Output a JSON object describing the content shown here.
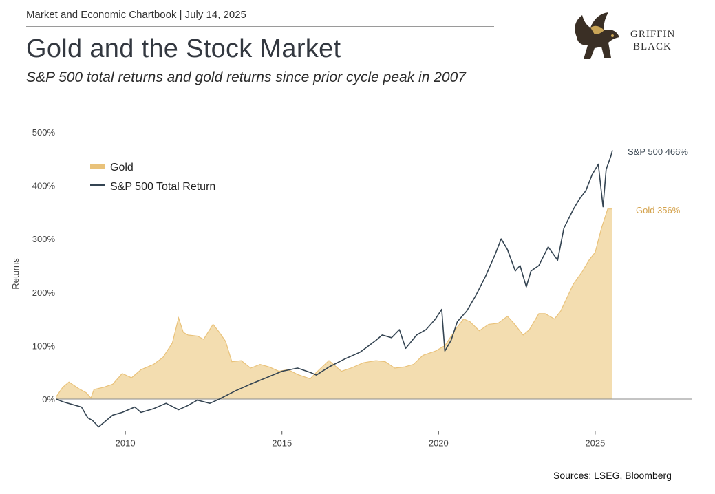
{
  "header": {
    "chartbook_line": "Market and Economic Chartbook | July 14, 2025",
    "title": "Gold and the Stock Market",
    "subtitle": "S&P 500 total returns and gold returns since prior cycle peak in 2007",
    "logo_text_line1": "GRIFFIN",
    "logo_text_line2": "BLACK"
  },
  "footer": {
    "sources": "Sources: LSEG, Bloomberg"
  },
  "colors": {
    "gold": "#e9c27a",
    "gold_fill": "#f3ddb0",
    "sp500": "#344452",
    "axis": "#9a9a9a"
  },
  "chart_data": {
    "type": "area",
    "ylabel": "Returns",
    "xlabel": "",
    "y_ticks": [
      "500%",
      "400%",
      "300%",
      "200%",
      "100%",
      "0%"
    ],
    "y_tick_values": [
      500,
      400,
      300,
      200,
      100,
      0
    ],
    "x_ticks": [
      "2010",
      "2015",
      "2020",
      "2025"
    ],
    "x_tick_values": [
      2010,
      2015,
      2020,
      2025
    ],
    "xlim": [
      2007.8,
      2028.1
    ],
    "ylim": [
      -60,
      500
    ],
    "legend_position": "top-left",
    "series": [
      {
        "name": "Gold",
        "style": "area",
        "end_label": "Gold 356%",
        "points": [
          [
            2007.8,
            5
          ],
          [
            2008.0,
            22
          ],
          [
            2008.2,
            32
          ],
          [
            2008.5,
            20
          ],
          [
            2008.75,
            12
          ],
          [
            2008.9,
            2
          ],
          [
            2009.0,
            18
          ],
          [
            2009.3,
            22
          ],
          [
            2009.6,
            28
          ],
          [
            2009.9,
            48
          ],
          [
            2010.2,
            40
          ],
          [
            2010.5,
            55
          ],
          [
            2010.9,
            65
          ],
          [
            2011.2,
            78
          ],
          [
            2011.5,
            105
          ],
          [
            2011.7,
            152
          ],
          [
            2011.85,
            125
          ],
          [
            2012.0,
            120
          ],
          [
            2012.3,
            118
          ],
          [
            2012.5,
            112
          ],
          [
            2012.8,
            140
          ],
          [
            2013.0,
            125
          ],
          [
            2013.2,
            108
          ],
          [
            2013.4,
            70
          ],
          [
            2013.7,
            72
          ],
          [
            2014.0,
            58
          ],
          [
            2014.3,
            65
          ],
          [
            2014.6,
            60
          ],
          [
            2014.9,
            52
          ],
          [
            2015.2,
            55
          ],
          [
            2015.5,
            46
          ],
          [
            2015.9,
            38
          ],
          [
            2016.1,
            50
          ],
          [
            2016.5,
            72
          ],
          [
            2016.9,
            52
          ],
          [
            2017.2,
            58
          ],
          [
            2017.6,
            68
          ],
          [
            2018.0,
            72
          ],
          [
            2018.3,
            70
          ],
          [
            2018.6,
            58
          ],
          [
            2018.9,
            60
          ],
          [
            2019.2,
            65
          ],
          [
            2019.5,
            82
          ],
          [
            2019.9,
            90
          ],
          [
            2020.2,
            100
          ],
          [
            2020.6,
            135
          ],
          [
            2020.8,
            150
          ],
          [
            2021.0,
            145
          ],
          [
            2021.3,
            128
          ],
          [
            2021.6,
            140
          ],
          [
            2021.9,
            142
          ],
          [
            2022.2,
            155
          ],
          [
            2022.4,
            142
          ],
          [
            2022.7,
            120
          ],
          [
            2022.9,
            130
          ],
          [
            2023.2,
            160
          ],
          [
            2023.4,
            160
          ],
          [
            2023.7,
            150
          ],
          [
            2023.9,
            165
          ],
          [
            2024.1,
            190
          ],
          [
            2024.3,
            215
          ],
          [
            2024.6,
            240
          ],
          [
            2024.8,
            260
          ],
          [
            2025.0,
            275
          ],
          [
            2025.2,
            320
          ],
          [
            2025.4,
            356
          ],
          [
            2025.55,
            356
          ]
        ]
      },
      {
        "name": "S&P 500 Total Return",
        "style": "line",
        "end_label": "S&P 500 466%",
        "points": [
          [
            2007.8,
            0
          ],
          [
            2008.0,
            -5
          ],
          [
            2008.3,
            -10
          ],
          [
            2008.6,
            -15
          ],
          [
            2008.8,
            -35
          ],
          [
            2008.95,
            -40
          ],
          [
            2009.15,
            -52
          ],
          [
            2009.35,
            -42
          ],
          [
            2009.6,
            -30
          ],
          [
            2009.9,
            -25
          ],
          [
            2010.3,
            -15
          ],
          [
            2010.5,
            -25
          ],
          [
            2010.9,
            -18
          ],
          [
            2011.3,
            -8
          ],
          [
            2011.7,
            -20
          ],
          [
            2012.0,
            -12
          ],
          [
            2012.3,
            -2
          ],
          [
            2012.7,
            -8
          ],
          [
            2013.0,
            0
          ],
          [
            2013.5,
            15
          ],
          [
            2014.0,
            28
          ],
          [
            2014.5,
            40
          ],
          [
            2015.0,
            52
          ],
          [
            2015.5,
            58
          ],
          [
            2015.9,
            50
          ],
          [
            2016.1,
            45
          ],
          [
            2016.5,
            60
          ],
          [
            2017.0,
            75
          ],
          [
            2017.5,
            88
          ],
          [
            2018.0,
            110
          ],
          [
            2018.2,
            120
          ],
          [
            2018.5,
            115
          ],
          [
            2018.75,
            130
          ],
          [
            2018.95,
            95
          ],
          [
            2019.3,
            120
          ],
          [
            2019.6,
            130
          ],
          [
            2019.9,
            150
          ],
          [
            2020.1,
            168
          ],
          [
            2020.2,
            90
          ],
          [
            2020.4,
            110
          ],
          [
            2020.6,
            145
          ],
          [
            2020.9,
            165
          ],
          [
            2021.2,
            195
          ],
          [
            2021.5,
            230
          ],
          [
            2021.8,
            270
          ],
          [
            2022.0,
            300
          ],
          [
            2022.2,
            280
          ],
          [
            2022.45,
            240
          ],
          [
            2022.6,
            250
          ],
          [
            2022.8,
            210
          ],
          [
            2022.95,
            240
          ],
          [
            2023.2,
            250
          ],
          [
            2023.5,
            285
          ],
          [
            2023.8,
            260
          ],
          [
            2024.0,
            320
          ],
          [
            2024.3,
            355
          ],
          [
            2024.5,
            375
          ],
          [
            2024.7,
            390
          ],
          [
            2024.9,
            420
          ],
          [
            2025.1,
            440
          ],
          [
            2025.25,
            360
          ],
          [
            2025.35,
            430
          ],
          [
            2025.5,
            455
          ],
          [
            2025.55,
            466
          ]
        ]
      }
    ]
  }
}
